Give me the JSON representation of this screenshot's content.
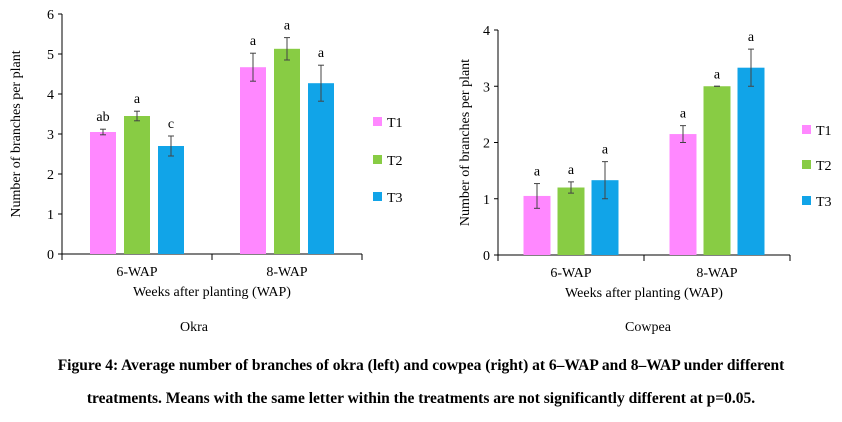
{
  "chart_data": [
    {
      "type": "bar",
      "title": "Okra",
      "xlabel": "Weeks after planting (WAP)",
      "ylabel": "Number of branches per plant",
      "ylim": [
        0,
        6
      ],
      "yticks": [
        "0",
        "1",
        "2",
        "3",
        "4",
        "5",
        "6"
      ],
      "categories": [
        "6-WAP",
        "8-WAP"
      ],
      "legend_position": "right",
      "series": [
        {
          "name": "T1",
          "color": "#ff88ff",
          "values": [
            3.05,
            4.67
          ],
          "errors": [
            0.07,
            0.35
          ],
          "letters": [
            "ab",
            "a"
          ]
        },
        {
          "name": "T2",
          "color": "#88cc44",
          "values": [
            3.45,
            5.13
          ],
          "errors": [
            0.12,
            0.28
          ],
          "letters": [
            "a",
            "a"
          ]
        },
        {
          "name": "T3",
          "color": "#11a4e8",
          "values": [
            2.7,
            4.27
          ],
          "errors": [
            0.25,
            0.45
          ],
          "letters": [
            "c",
            "a"
          ]
        }
      ]
    },
    {
      "type": "bar",
      "title": "Cowpea",
      "xlabel": "Weeks after planting (WAP)",
      "ylabel": "Number of branches per plant",
      "ylim": [
        0,
        4
      ],
      "yticks": [
        "0",
        "1",
        "2",
        "3",
        "4"
      ],
      "categories": [
        "6-WAP",
        "8-WAP"
      ],
      "legend_position": "right",
      "series": [
        {
          "name": "T1",
          "color": "#ff88ff",
          "values": [
            1.05,
            2.15
          ],
          "errors": [
            0.22,
            0.15
          ],
          "letters": [
            "a",
            "a"
          ]
        },
        {
          "name": "T2",
          "color": "#88cc44",
          "values": [
            1.2,
            3.0
          ],
          "errors": [
            0.1,
            0.0
          ],
          "letters": [
            "a",
            "a"
          ]
        },
        {
          "name": "T3",
          "color": "#11a4e8",
          "values": [
            1.33,
            3.33
          ],
          "errors": [
            0.33,
            0.33
          ],
          "letters": [
            "a",
            "a"
          ]
        }
      ]
    }
  ],
  "caption": {
    "line1": "Figure 4: Average number of branches of okra (left) and cowpea (right) at 6–WAP and 8–WAP under different",
    "line2": "treatments. Means with the same letter within the treatments are not significantly different at p=0.05."
  }
}
